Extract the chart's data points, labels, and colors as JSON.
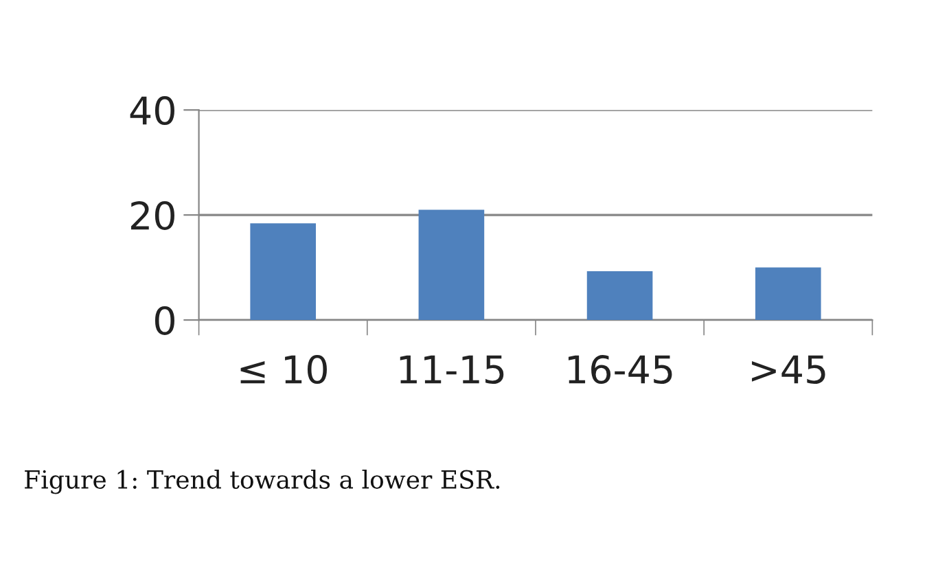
{
  "chart_data": {
    "type": "bar",
    "categories": [
      "≤ 10",
      "11-15",
      "16-45",
      ">45"
    ],
    "values": [
      18.4,
      21,
      9.3,
      10
    ],
    "color": "#4f81bd",
    "ylim": [
      0,
      40
    ],
    "yticks": [
      0,
      20,
      40
    ],
    "grid": "y",
    "annotations": [
      "Figure 1: Trend towards a lower ESR."
    ]
  }
}
